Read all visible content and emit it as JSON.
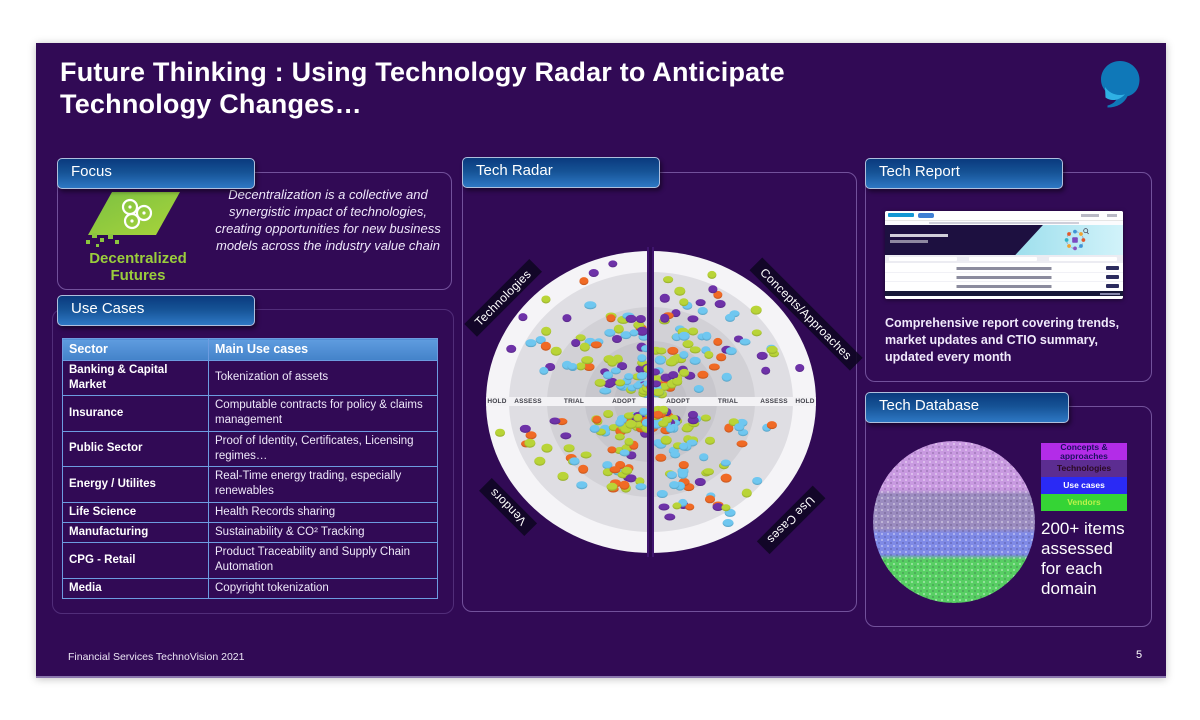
{
  "slide": {
    "title": "Future Thinking : Using Technology Radar to Anticipate\nTechnology Changes…",
    "footer": "Financial Services TechnoVision 2021",
    "page": "5",
    "background": "#310a55"
  },
  "focus": {
    "tab": "Focus",
    "logo_caption": "Decentralized\nFutures",
    "description": "Decentralization is a collective and synergistic impact of technologies, creating opportunities for new business models across the industry value chain"
  },
  "use_cases": {
    "tab": "Use Cases",
    "headers": [
      "Sector",
      "Main Use cases"
    ],
    "rows": [
      [
        "Banking & Capital Market",
        "Tokenization of assets"
      ],
      [
        "Insurance",
        "Computable contracts for policy & claims management"
      ],
      [
        "Public Sector",
        "Proof of Identity, Certificates, Licensing regimes…"
      ],
      [
        "Energy / Utilites",
        "Real-Time energy trading, especially renewables"
      ],
      [
        "Life Science",
        "Health Records sharing"
      ],
      [
        "Manufacturing",
        "Sustainability & CO² Tracking"
      ],
      [
        "CPG - Retail",
        "Product Traceability and Supply Chain Automation"
      ],
      [
        "Media",
        "Copyright tokenization"
      ]
    ]
  },
  "tech_radar": {
    "tab": "Tech Radar",
    "quadrant_labels": [
      "Technologies",
      "Concepts/Approaches",
      "Vendors",
      "Use Cases"
    ],
    "ring_labels": [
      "HOLD",
      "ASSESS",
      "TRIAL",
      "ADOPT"
    ],
    "dot_palette": [
      "#b9d437",
      "#6fc7f0",
      "#6e32a8",
      "#f06a25"
    ],
    "dot_weights": [
      0.36,
      0.27,
      0.21,
      0.16
    ],
    "dot_counts": [
      85,
      90,
      82,
      86
    ],
    "seed": 20210705
  },
  "tech_report": {
    "tab": "Tech Report",
    "description": "Comprehensive report covering trends, market updates and CTIO summary, updated every month"
  },
  "tech_database": {
    "tab": "Tech Database",
    "legend": [
      {
        "label": "Concepts & approaches",
        "bg": "#b32ce8",
        "fg": "#1c1060"
      },
      {
        "label": "Technologies",
        "bg": "#5c2d91",
        "fg": "#2b0a21"
      },
      {
        "label": "Use cases",
        "bg": "#2a2af5",
        "fg": "#ffffff"
      },
      {
        "label": "Vendors",
        "bg": "#35d435",
        "fg": "#baf24b"
      }
    ],
    "note": "200+ items assessed for each domain",
    "band_colors": [
      "#c99ae1",
      "#9b8cc0",
      "#7f8ae6",
      "#57cf63"
    ]
  }
}
